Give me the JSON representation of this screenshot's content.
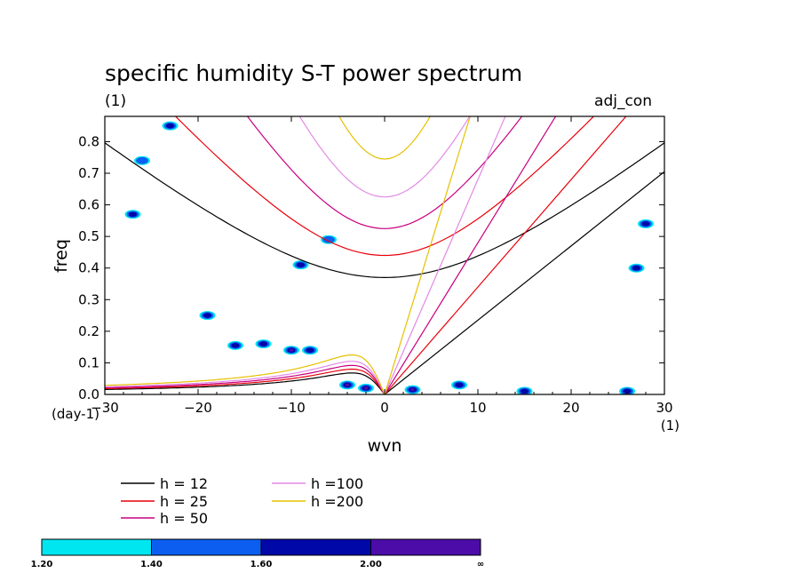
{
  "chart_data": {
    "type": "line",
    "title": "specific humidity S-T power spectrum",
    "subtitle_left": "(1)",
    "subtitle_right": "adj_con",
    "xlabel": "wvn",
    "ylabel": "freq",
    "x_unit_label": "(1)",
    "y_unit_label": "(day-1)",
    "xlim": [
      -30,
      30
    ],
    "ylim": [
      0,
      0.88
    ],
    "x_ticks": [
      "-30",
      "-20",
      "-10",
      "0",
      "10",
      "20",
      "30"
    ],
    "y_ticks": [
      "0.0",
      "0.1",
      "0.2",
      "0.3",
      "0.4",
      "0.5",
      "0.6",
      "0.7",
      "0.8"
    ],
    "grid": false,
    "dispersion_curves": [
      {
        "name": "h = 12",
        "h": 12,
        "color": "#000000"
      },
      {
        "name": "h = 25",
        "h": 25,
        "color": "#e8000b"
      },
      {
        "name": "h = 50",
        "h": 50,
        "color": "#c80080"
      },
      {
        "name": "h =100",
        "h": 100,
        "color": "#e28ae6"
      },
      {
        "name": "h =200",
        "h": 200,
        "color": "#e6c000"
      }
    ],
    "inertio_gravity_min_freq": {
      "h = 12": 0.37,
      "h = 25": 0.44,
      "h = 50": 0.525,
      "h =100": 0.625,
      "h =200": 0.745
    },
    "kelvin_slope": {
      "h = 12": 0.0235,
      "h = 25": 0.034,
      "h = 50": 0.048,
      "h =100": 0.068,
      "h =200": 0.096
    },
    "rossby_peak_freq": {
      "h = 12": 0.068,
      "h = 25": 0.08,
      "h = 50": 0.092,
      "h =100": 0.105,
      "h =200": 0.125
    },
    "contour_levels": [
      "1.20",
      "1.40",
      "1.60",
      "2.00",
      "∞"
    ],
    "contour_colors": [
      "#00e6f0",
      "#0b5ef0",
      "#0008a8",
      "#4b0ca8"
    ],
    "power_regions": [
      {
        "wvn": -4,
        "freq": 0.03,
        "level": 3
      },
      {
        "wvn": -2,
        "freq": 0.02,
        "level": 3
      },
      {
        "wvn": 3,
        "freq": 0.015,
        "level": 3
      },
      {
        "wvn": -10,
        "freq": 0.14,
        "level": 3
      },
      {
        "wvn": -13,
        "freq": 0.16,
        "level": 2
      },
      {
        "wvn": -16,
        "freq": 0.155,
        "level": 2
      },
      {
        "wvn": -27,
        "freq": 0.57,
        "level": 2
      },
      {
        "wvn": -26,
        "freq": 0.74,
        "level": 1
      },
      {
        "wvn": -9,
        "freq": 0.41,
        "level": 2
      },
      {
        "wvn": -6,
        "freq": 0.49,
        "level": 1
      },
      {
        "wvn": 8,
        "freq": 0.03,
        "level": 2
      },
      {
        "wvn": -23,
        "freq": 0.85,
        "level": 2
      },
      {
        "wvn": -19,
        "freq": 0.25,
        "level": 2
      },
      {
        "wvn": -8,
        "freq": 0.14,
        "level": 2
      },
      {
        "wvn": 15,
        "freq": 0.01,
        "level": 2
      },
      {
        "wvn": 26,
        "freq": 0.01,
        "level": 2
      },
      {
        "wvn": 27,
        "freq": 0.4,
        "level": 2
      },
      {
        "wvn": 28,
        "freq": 0.54,
        "level": 2
      }
    ]
  },
  "legend": {
    "items": [
      "h = 12",
      "h = 25",
      "h = 50",
      "h =100",
      "h =200"
    ]
  },
  "colorbar": {
    "labels": [
      "1.20",
      "1.40",
      "1.60",
      "2.00",
      "∞"
    ]
  }
}
